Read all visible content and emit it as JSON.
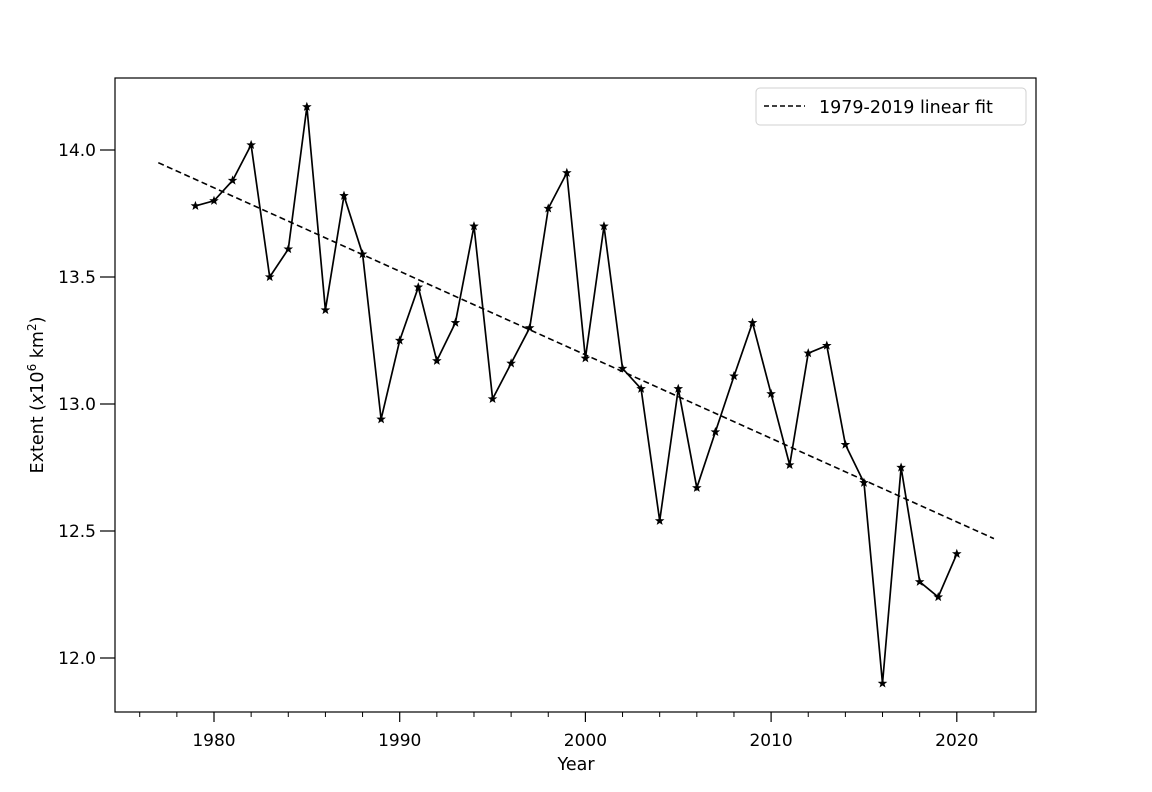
{
  "chart_data": {
    "type": "line",
    "title": "",
    "xlabel": "Year",
    "ylabel": "Extent (x10^6 km^2)",
    "ylabel_parts": {
      "prefix": "Extent (",
      "x": "x",
      "base": "10",
      "exp1": "6",
      "unit": " km",
      "exp2": "2",
      "suffix": ")"
    },
    "xlim": [
      1973.9,
      2023.6
    ],
    "ylim": [
      11.79,
      14.28
    ],
    "x_ticks": [
      1980,
      1990,
      2000,
      2010,
      2020
    ],
    "x_tick_labels": [
      "1980",
      "1990",
      "2000",
      "2010",
      "2020"
    ],
    "x_minor_ticks": [
      1976,
      1978,
      1982,
      1984,
      1986,
      1988,
      1992,
      1994,
      1996,
      1998,
      2002,
      2004,
      2006,
      2008,
      2012,
      2014,
      2016,
      2018,
      2022
    ],
    "y_ticks": [
      12.0,
      12.5,
      13.0,
      13.5,
      14.0
    ],
    "y_tick_labels": [
      "12.0",
      "12.5",
      "13.0",
      "13.5",
      "14.0"
    ],
    "grid": false,
    "legend_position": "upper right",
    "series": [
      {
        "name": "Extent",
        "style": "solid",
        "marker": "star",
        "color": "#000000",
        "x": [
          1979,
          1980,
          1981,
          1982,
          1983,
          1984,
          1985,
          1986,
          1987,
          1988,
          1989,
          1990,
          1991,
          1992,
          1993,
          1994,
          1995,
          1996,
          1997,
          1998,
          1999,
          2000,
          2001,
          2002,
          2003,
          2004,
          2005,
          2006,
          2007,
          2008,
          2009,
          2010,
          2011,
          2012,
          2013,
          2014,
          2015,
          2016,
          2017,
          2018,
          2019,
          2020
        ],
        "values": [
          13.78,
          13.8,
          13.88,
          14.02,
          13.5,
          13.61,
          14.17,
          13.37,
          13.82,
          13.59,
          12.94,
          13.25,
          13.46,
          13.17,
          13.32,
          13.7,
          13.02,
          13.16,
          13.3,
          13.77,
          13.91,
          13.18,
          13.7,
          13.14,
          13.06,
          12.54,
          13.06,
          12.67,
          12.89,
          13.11,
          13.32,
          13.04,
          12.76,
          13.2,
          13.23,
          12.84,
          12.69,
          11.9,
          12.75,
          12.3,
          12.24,
          12.41
        ]
      },
      {
        "name": "1979-2019 linear fit",
        "style": "dashed",
        "color": "#000000",
        "x": [
          1977,
          2022
        ],
        "values": [
          13.95,
          12.47
        ]
      }
    ],
    "legend": [
      {
        "label": "1979-2019 linear fit",
        "style": "dashed"
      }
    ]
  }
}
